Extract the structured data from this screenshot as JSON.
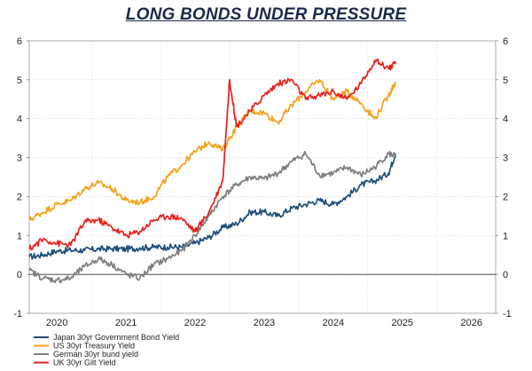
{
  "chart_data": {
    "type": "line",
    "title": "LONG BONDS UNDER PRESSURE",
    "xlabel": "",
    "ylabel": "",
    "xlim": [
      2019.6,
      2026.35
    ],
    "ylim": [
      -1,
      6
    ],
    "yticks": [
      -1,
      0,
      1,
      2,
      3,
      4,
      5,
      6
    ],
    "xticks": [
      {
        "label": "2020",
        "value": 2020.0
      },
      {
        "label": "2021",
        "value": 2021.0
      },
      {
        "label": "2022",
        "value": 2022.0
      },
      {
        "label": "2023",
        "value": 2023.0
      },
      {
        "label": "2024",
        "value": 2024.0
      },
      {
        "label": "2025",
        "value": 2025.0
      },
      {
        "label": "2026",
        "value": 2026.0
      }
    ],
    "grid": true,
    "legend_position": "bottom-left",
    "series": [
      {
        "name": "Japan 30yr Government Bond Yield",
        "color": "#1f4e79",
        "x": [
          2019.6,
          2019.8,
          2020.0,
          2020.2,
          2020.4,
          2020.6,
          2020.8,
          2021.0,
          2021.2,
          2021.4,
          2021.6,
          2021.8,
          2022.0,
          2022.2,
          2022.4,
          2022.6,
          2022.8,
          2023.0,
          2023.2,
          2023.4,
          2023.6,
          2023.8,
          2024.0,
          2024.2,
          2024.4,
          2024.6,
          2024.8,
          2024.9
        ],
        "values": [
          0.45,
          0.5,
          0.6,
          0.62,
          0.62,
          0.65,
          0.66,
          0.65,
          0.68,
          0.7,
          0.7,
          0.7,
          0.8,
          0.95,
          1.2,
          1.3,
          1.6,
          1.6,
          1.5,
          1.7,
          1.8,
          1.9,
          1.8,
          2.0,
          2.3,
          2.4,
          2.6,
          3.1
        ]
      },
      {
        "name": "US 30yr Treasury Yield",
        "color": "#f2a21b",
        "x": [
          2019.6,
          2019.8,
          2020.0,
          2020.2,
          2020.4,
          2020.6,
          2020.8,
          2021.0,
          2021.2,
          2021.4,
          2021.6,
          2021.8,
          2022.0,
          2022.2,
          2022.4,
          2022.6,
          2022.8,
          2023.0,
          2023.2,
          2023.4,
          2023.6,
          2023.8,
          2024.0,
          2024.2,
          2024.4,
          2024.6,
          2024.8,
          2024.9
        ],
        "values": [
          1.4,
          1.6,
          1.8,
          1.9,
          2.2,
          2.35,
          2.2,
          1.9,
          1.85,
          2.0,
          2.5,
          2.8,
          3.15,
          3.4,
          3.2,
          3.8,
          4.2,
          4.15,
          3.9,
          4.35,
          4.7,
          5.0,
          4.5,
          4.7,
          4.4,
          4.0,
          4.6,
          4.95
        ]
      },
      {
        "name": "German 30yr bund yield",
        "color": "#7f7f7f",
        "x": [
          2019.6,
          2019.8,
          2020.0,
          2020.2,
          2020.4,
          2020.6,
          2020.8,
          2021.0,
          2021.2,
          2021.4,
          2021.6,
          2021.8,
          2022.0,
          2022.2,
          2022.4,
          2022.6,
          2022.8,
          2023.0,
          2023.2,
          2023.4,
          2023.6,
          2023.8,
          2024.0,
          2024.2,
          2024.4,
          2024.6,
          2024.8,
          2024.9
        ],
        "values": [
          0.1,
          -0.1,
          -0.15,
          -0.1,
          0.2,
          0.4,
          0.25,
          0.0,
          -0.1,
          0.25,
          0.4,
          0.6,
          1.0,
          1.5,
          2.0,
          2.3,
          2.5,
          2.45,
          2.6,
          2.9,
          3.1,
          2.55,
          2.6,
          2.75,
          2.55,
          2.75,
          3.1,
          3.05
        ]
      },
      {
        "name": "UK 30yr Gilt Yield",
        "color": "#e8211d",
        "x": [
          2019.6,
          2019.8,
          2020.0,
          2020.2,
          2020.4,
          2020.6,
          2020.8,
          2021.0,
          2021.2,
          2021.4,
          2021.6,
          2021.8,
          2022.0,
          2022.2,
          2022.4,
          2022.5,
          2022.6,
          2022.8,
          2023.0,
          2023.2,
          2023.4,
          2023.6,
          2023.8,
          2024.0,
          2024.2,
          2024.4,
          2024.6,
          2024.8,
          2024.9
        ],
        "values": [
          0.65,
          0.9,
          0.8,
          0.75,
          1.35,
          1.4,
          1.2,
          1.0,
          1.1,
          1.4,
          1.5,
          1.45,
          1.1,
          1.6,
          2.4,
          5.0,
          3.8,
          4.2,
          4.6,
          4.9,
          5.0,
          4.5,
          4.6,
          4.7,
          4.5,
          4.9,
          5.5,
          5.3,
          5.4
        ]
      }
    ]
  }
}
